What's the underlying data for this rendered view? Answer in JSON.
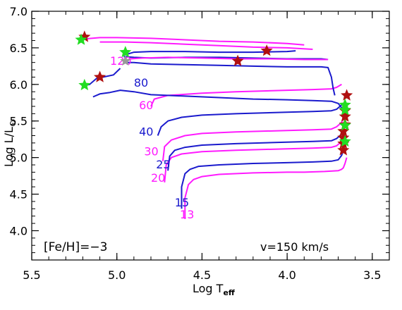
{
  "chart_data": {
    "type": "line",
    "title": "",
    "xlabel_main": "Log T",
    "xlabel_sub": "eff",
    "ylabel_main": "Log L/L",
    "ylabel_sub": "⊙",
    "xlim": [
      5.5,
      3.4
    ],
    "ylim": [
      3.6,
      7.0
    ],
    "x_ticks": [
      5.5,
      5.0,
      4.5,
      4.0,
      3.5
    ],
    "x_tick_labels": [
      "5.5",
      "5.0",
      "4.5",
      "4.0",
      "3.5"
    ],
    "y_ticks": [
      4.0,
      4.5,
      5.0,
      5.5,
      6.0,
      6.5,
      7.0
    ],
    "y_tick_labels": [
      "4.0",
      "4.5",
      "5.0",
      "5.5",
      "6.0",
      "6.5",
      "7.0"
    ],
    "grid": false,
    "annotations": {
      "metallicity": "[Fe/H]=−3",
      "rotation": "v=150 km/s"
    },
    "colors": {
      "blue": "#1a1acd",
      "magenta": "#ff1aff",
      "red_star": "#b01010",
      "green_star": "#22dd22"
    },
    "series": [
      {
        "name": "13",
        "color": "magenta",
        "label": "13",
        "label_at": [
          4.63,
          4.17
        ],
        "points": [
          [
            4.6,
            4.16
          ],
          [
            4.6,
            4.45
          ],
          [
            4.58,
            4.63
          ],
          [
            4.55,
            4.7
          ],
          [
            4.5,
            4.74
          ],
          [
            4.4,
            4.77
          ],
          [
            4.2,
            4.79
          ],
          [
            4.0,
            4.8
          ],
          [
            3.9,
            4.8
          ],
          [
            3.78,
            4.81
          ],
          [
            3.7,
            4.82
          ],
          [
            3.68,
            4.84
          ],
          [
            3.67,
            4.86
          ],
          [
            3.66,
            4.92
          ],
          [
            3.65,
            5.0
          ]
        ]
      },
      {
        "name": "15",
        "color": "blue",
        "label": "15",
        "label_at": [
          4.66,
          4.33
        ],
        "points": [
          [
            4.62,
            4.3
          ],
          [
            4.62,
            4.6
          ],
          [
            4.6,
            4.78
          ],
          [
            4.57,
            4.84
          ],
          [
            4.52,
            4.88
          ],
          [
            4.4,
            4.9
          ],
          [
            4.2,
            4.92
          ],
          [
            4.0,
            4.93
          ],
          [
            3.85,
            4.94
          ],
          [
            3.74,
            4.95
          ],
          [
            3.7,
            4.97
          ],
          [
            3.68,
            5.03
          ],
          [
            3.67,
            5.1
          ]
        ]
      },
      {
        "name": "20",
        "color": "magenta",
        "label": "20",
        "label_at": [
          4.8,
          4.67
        ],
        "points": [
          [
            4.72,
            4.66
          ],
          [
            4.71,
            4.9
          ],
          [
            4.68,
            5.0
          ],
          [
            4.62,
            5.05
          ],
          [
            4.5,
            5.08
          ],
          [
            4.3,
            5.1
          ],
          [
            4.0,
            5.12
          ],
          [
            3.85,
            5.13
          ],
          [
            3.74,
            5.14
          ],
          [
            3.71,
            5.16
          ],
          [
            3.68,
            5.22
          ],
          [
            3.67,
            5.28
          ]
        ]
      },
      {
        "name": "25",
        "color": "blue",
        "label": "25",
        "label_at": [
          4.77,
          4.85
        ],
        "points": [
          [
            4.7,
            4.82
          ],
          [
            4.69,
            5.02
          ],
          [
            4.66,
            5.1
          ],
          [
            4.6,
            5.14
          ],
          [
            4.5,
            5.17
          ],
          [
            4.3,
            5.19
          ],
          [
            4.0,
            5.21
          ],
          [
            3.85,
            5.22
          ],
          [
            3.74,
            5.23
          ],
          [
            3.71,
            5.26
          ],
          [
            3.68,
            5.32
          ],
          [
            3.67,
            5.4
          ]
        ]
      },
      {
        "name": "30",
        "color": "magenta",
        "label": "30",
        "label_at": [
          4.84,
          5.03
        ],
        "points": [
          [
            4.73,
            4.95
          ],
          [
            4.72,
            5.15
          ],
          [
            4.68,
            5.24
          ],
          [
            4.6,
            5.3
          ],
          [
            4.5,
            5.33
          ],
          [
            4.3,
            5.35
          ],
          [
            4.0,
            5.37
          ],
          [
            3.85,
            5.38
          ],
          [
            3.74,
            5.39
          ],
          [
            3.71,
            5.42
          ],
          [
            3.68,
            5.48
          ],
          [
            3.67,
            5.55
          ]
        ]
      },
      {
        "name": "40",
        "color": "blue",
        "label": "40",
        "label_at": [
          4.87,
          5.3
        ],
        "points": [
          [
            4.76,
            5.3
          ],
          [
            4.74,
            5.42
          ],
          [
            4.7,
            5.5
          ],
          [
            4.62,
            5.55
          ],
          [
            4.5,
            5.58
          ],
          [
            4.3,
            5.6
          ],
          [
            4.0,
            5.62
          ],
          [
            3.85,
            5.63
          ],
          [
            3.74,
            5.64
          ],
          [
            3.71,
            5.66
          ],
          [
            3.68,
            5.72
          ]
        ]
      },
      {
        "name": "60",
        "color": "magenta",
        "label": "60",
        "label_at": [
          4.87,
          5.66
        ],
        "points": [
          [
            4.8,
            5.7
          ],
          [
            4.78,
            5.8
          ],
          [
            4.7,
            5.85
          ],
          [
            4.5,
            5.88
          ],
          [
            4.3,
            5.9
          ],
          [
            4.0,
            5.92
          ],
          [
            3.85,
            5.93
          ],
          [
            3.74,
            5.94
          ],
          [
            3.71,
            5.96
          ],
          [
            3.68,
            6.0
          ]
        ]
      },
      {
        "name": "80",
        "color": "blue",
        "label": "80",
        "label_at": [
          4.9,
          5.97
        ],
        "points": [
          [
            5.14,
            5.83
          ],
          [
            5.1,
            5.87
          ],
          [
            5.04,
            5.89
          ],
          [
            4.98,
            5.92
          ],
          [
            4.9,
            5.9
          ],
          [
            4.8,
            5.86
          ],
          [
            4.6,
            5.84
          ],
          [
            4.4,
            5.82
          ],
          [
            4.2,
            5.8
          ],
          [
            4.0,
            5.79
          ],
          [
            3.85,
            5.78
          ],
          [
            3.74,
            5.77
          ],
          [
            3.7,
            5.74
          ],
          [
            3.68,
            5.68
          ]
        ]
      },
      {
        "name": "120",
        "color": "blue",
        "label": "",
        "label_at": [
          0,
          0
        ],
        "points": [
          [
            4.96,
            6.3
          ],
          [
            4.9,
            6.3
          ],
          [
            4.8,
            6.28
          ],
          [
            4.6,
            6.27
          ],
          [
            4.4,
            6.26
          ],
          [
            4.2,
            6.25
          ],
          [
            4.0,
            6.24
          ],
          [
            3.8,
            6.24
          ],
          [
            3.76,
            6.23
          ],
          [
            3.74,
            6.1
          ],
          [
            3.73,
            5.95
          ],
          [
            3.72,
            5.85
          ]
        ]
      },
      {
        "name": "120b",
        "color": "blue",
        "label": "",
        "label_at": [
          0,
          0
        ],
        "points": [
          [
            4.96,
            6.4
          ],
          [
            4.9,
            6.44
          ],
          [
            4.8,
            6.45
          ],
          [
            4.6,
            6.45
          ],
          [
            4.4,
            6.44
          ],
          [
            4.2,
            6.44
          ],
          [
            4.0,
            6.45
          ],
          [
            3.95,
            6.46
          ]
        ]
      },
      {
        "name": "120c",
        "color": "blue",
        "label": "",
        "label_at": [
          0,
          0
        ],
        "points": [
          [
            4.96,
            6.38
          ],
          [
            4.9,
            6.37
          ],
          [
            4.8,
            6.36
          ],
          [
            4.6,
            6.37
          ],
          [
            4.4,
            6.37
          ],
          [
            4.2,
            6.36
          ],
          [
            4.0,
            6.35
          ],
          [
            3.8,
            6.35
          ],
          [
            3.76,
            6.34
          ]
        ]
      },
      {
        "name": "120m",
        "color": "magenta",
        "label": "120",
        "label_at": [
          5.04,
          6.27
        ],
        "points": [
          [
            4.96,
            6.32
          ],
          [
            4.92,
            6.35
          ],
          [
            4.85,
            6.36
          ],
          [
            4.7,
            6.37
          ],
          [
            4.5,
            6.36
          ],
          [
            4.3,
            6.35
          ],
          [
            4.1,
            6.35
          ],
          [
            3.9,
            6.34
          ],
          [
            3.76,
            6.34
          ]
        ]
      },
      {
        "name": "150m",
        "color": "magenta",
        "label": "",
        "label_at": [
          0,
          0
        ],
        "points": [
          [
            5.2,
            6.62
          ],
          [
            5.1,
            6.64
          ],
          [
            5.0,
            6.64
          ],
          [
            4.8,
            6.63
          ],
          [
            4.6,
            6.61
          ],
          [
            4.4,
            6.59
          ],
          [
            4.2,
            6.58
          ],
          [
            4.0,
            6.56
          ],
          [
            3.9,
            6.54
          ]
        ]
      },
      {
        "name": "150m2",
        "color": "magenta",
        "label": "",
        "label_at": [
          0,
          0
        ],
        "points": [
          [
            5.1,
            6.58
          ],
          [
            4.95,
            6.58
          ],
          [
            4.8,
            6.57
          ],
          [
            4.6,
            6.55
          ],
          [
            4.4,
            6.53
          ],
          [
            4.2,
            6.51
          ],
          [
            4.0,
            6.5
          ],
          [
            3.85,
            6.48
          ]
        ]
      },
      {
        "name": "5bl",
        "color": "blue",
        "label": "",
        "label_at": [
          0,
          0
        ],
        "points": [
          [
            5.2,
            5.98
          ],
          [
            5.16,
            6.0
          ],
          [
            5.12,
            6.08
          ],
          [
            5.08,
            6.1
          ],
          [
            5.02,
            6.13
          ],
          [
            4.98,
            6.22
          ]
        ]
      }
    ],
    "red_stars": [
      [
        5.19,
        6.65
      ],
      [
        5.1,
        6.1
      ],
      [
        4.29,
        6.32
      ],
      [
        4.12,
        6.46
      ],
      [
        3.65,
        5.85
      ],
      [
        3.66,
        5.64
      ],
      [
        3.66,
        5.56
      ],
      [
        3.66,
        5.45
      ],
      [
        3.67,
        5.36
      ],
      [
        3.67,
        5.27
      ],
      [
        3.67,
        5.19
      ],
      [
        3.67,
        5.1
      ]
    ],
    "green_stars": [
      [
        5.21,
        6.61
      ],
      [
        5.19,
        5.99
      ],
      [
        4.95,
        6.44
      ],
      [
        3.66,
        5.72
      ],
      [
        3.66,
        5.65
      ],
      [
        3.66,
        5.44
      ],
      [
        3.66,
        5.22
      ]
    ],
    "gray_star": [
      4.95,
      6.32
    ]
  }
}
